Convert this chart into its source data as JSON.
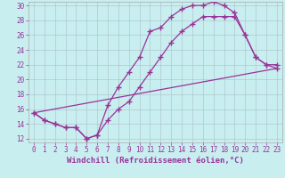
{
  "xlabel": "Windchill (Refroidissement éolien,°C)",
  "background_color": "#c8eef0",
  "grid_color": "#b0c8d0",
  "line_color": "#993399",
  "xlim": [
    -0.5,
    23.5
  ],
  "ylim": [
    11.5,
    30.5
  ],
  "xticks": [
    0,
    1,
    2,
    3,
    4,
    5,
    6,
    7,
    8,
    9,
    10,
    11,
    12,
    13,
    14,
    15,
    16,
    17,
    18,
    19,
    20,
    21,
    22,
    23
  ],
  "yticks": [
    12,
    14,
    16,
    18,
    20,
    22,
    24,
    26,
    28,
    30
  ],
  "line1_x": [
    0,
    1,
    2,
    3,
    4,
    5,
    6,
    7,
    8,
    9,
    10,
    11,
    12,
    13,
    14,
    15,
    16,
    17,
    18,
    19,
    20,
    21,
    22,
    23
  ],
  "line1_y": [
    15.5,
    14.5,
    14.0,
    13.5,
    13.5,
    12.0,
    12.5,
    16.5,
    19.0,
    21.0,
    23.0,
    26.5,
    27.0,
    28.5,
    29.5,
    30.0,
    30.0,
    30.5,
    30.0,
    29.0,
    26.0,
    23.0,
    22.0,
    21.5
  ],
  "line2_x": [
    0,
    1,
    2,
    3,
    4,
    5,
    6,
    7,
    8,
    9,
    10,
    11,
    12,
    13,
    14,
    15,
    16,
    17,
    18,
    19,
    20,
    21,
    22,
    23
  ],
  "line2_y": [
    15.5,
    14.5,
    14.0,
    13.5,
    13.5,
    12.0,
    12.5,
    14.5,
    16.0,
    17.0,
    19.0,
    21.0,
    23.0,
    25.0,
    26.5,
    27.5,
    28.5,
    28.5,
    28.5,
    28.5,
    26.0,
    23.0,
    22.0,
    22.0
  ],
  "line3_x": [
    0,
    23
  ],
  "line3_y": [
    15.5,
    21.5
  ],
  "fontsize_ticks": 5.5,
  "fontsize_label": 6.5
}
